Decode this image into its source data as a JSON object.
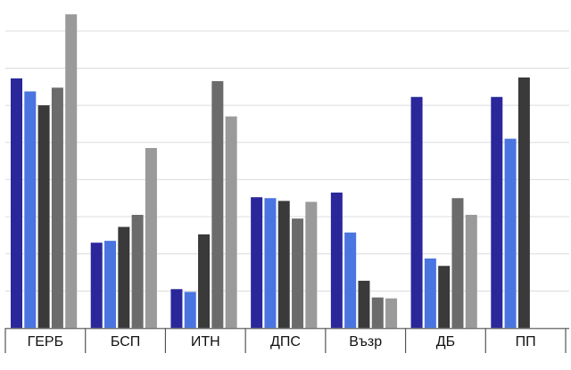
{
  "chart_data": {
    "type": "bar",
    "categories": [
      "ГЕРБ",
      "БСП",
      "ИТН",
      "ДПС",
      "Възр",
      "ДБ",
      "ПП"
    ],
    "series": [
      {
        "color": "#2a279b",
        "values": [
          26.9,
          9.2,
          4.2,
          14.1,
          14.6,
          24.9,
          24.9
        ]
      },
      {
        "color": "#4a74e0",
        "values": [
          25.5,
          9.4,
          3.9,
          14.0,
          10.3,
          7.5,
          20.4
        ]
      },
      {
        "color": "#3a3a3a",
        "values": [
          24.0,
          10.9,
          10.1,
          13.7,
          5.1,
          6.7,
          27.0
        ]
      },
      {
        "color": "#6b6b6b",
        "values": [
          25.9,
          12.2,
          26.6,
          11.8,
          3.3,
          14.0,
          null
        ]
      },
      {
        "color": "#9a9a9a",
        "values": [
          33.8,
          19.4,
          22.8,
          13.6,
          3.2,
          12.2,
          null
        ]
      }
    ],
    "ylim": [
      0,
      34
    ],
    "ytick_step": 4,
    "grid": true
  }
}
